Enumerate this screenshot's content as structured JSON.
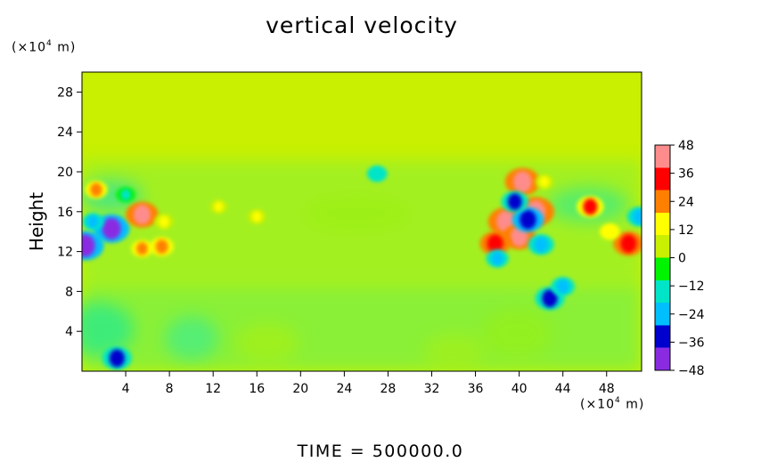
{
  "title": "vertical velocity",
  "footer": "TIME  =  500000.0",
  "chart_data": {
    "type": "heatmap",
    "title": "vertical velocity",
    "ylabel": "Height",
    "y_unit_prefix": "(×10",
    "y_unit_exp": "4",
    "y_unit_suffix": " m)",
    "x_unit_prefix": "(×10",
    "x_unit_exp": "4",
    "x_unit_suffix": " m)",
    "xlim": [
      0,
      51.2
    ],
    "ylim": [
      0,
      30
    ],
    "xticks": [
      4,
      8,
      12,
      16,
      20,
      24,
      28,
      32,
      36,
      40,
      44,
      48
    ],
    "yticks": [
      4,
      8,
      12,
      16,
      20,
      24,
      28
    ],
    "colorbar": {
      "range": [
        -48,
        48
      ],
      "ticks": [
        48,
        36,
        24,
        12,
        0,
        -12,
        -24,
        -36,
        -48
      ],
      "colors": [
        "#8a2be2",
        "#0000cd",
        "#00bfff",
        "#00e5c8",
        "#00f400",
        "#c8f000",
        "#ffff00",
        "#ff7f00",
        "#ff0000",
        "#ff8c8c"
      ]
    },
    "background_value": 0,
    "features": [
      {
        "x": 2.7,
        "y": 14.3,
        "value": -46
      },
      {
        "x": 0.3,
        "y": 12.6,
        "value": -48
      },
      {
        "x": 1.0,
        "y": 15.0,
        "value": -20
      },
      {
        "x": 5.5,
        "y": 15.7,
        "value": 40
      },
      {
        "x": 1.3,
        "y": 18.2,
        "value": 22
      },
      {
        "x": 5.5,
        "y": 12.3,
        "value": 20
      },
      {
        "x": 7.3,
        "y": 12.5,
        "value": 24
      },
      {
        "x": 7.5,
        "y": 15.0,
        "value": 16
      },
      {
        "x": 3.2,
        "y": 1.3,
        "value": -34
      },
      {
        "x": 38.8,
        "y": 15.0,
        "value": 46
      },
      {
        "x": 40.3,
        "y": 19.0,
        "value": 44
      },
      {
        "x": 40.0,
        "y": 13.5,
        "value": 40
      },
      {
        "x": 41.5,
        "y": 16.0,
        "value": 48
      },
      {
        "x": 37.8,
        "y": 12.8,
        "value": 36
      },
      {
        "x": 42.3,
        "y": 19.0,
        "value": 14
      },
      {
        "x": 40.8,
        "y": 15.2,
        "value": -38
      },
      {
        "x": 39.6,
        "y": 17.0,
        "value": -30
      },
      {
        "x": 42.0,
        "y": 12.7,
        "value": -28
      },
      {
        "x": 38.0,
        "y": 11.3,
        "value": -22
      },
      {
        "x": 46.5,
        "y": 16.5,
        "value": 30
      },
      {
        "x": 50.0,
        "y": 12.8,
        "value": 36
      },
      {
        "x": 48.3,
        "y": 14.0,
        "value": 18
      },
      {
        "x": 51.0,
        "y": 15.5,
        "value": -26
      },
      {
        "x": 42.8,
        "y": 7.3,
        "value": -34
      },
      {
        "x": 44.0,
        "y": 8.5,
        "value": -24
      },
      {
        "x": 27.0,
        "y": 19.8,
        "value": -18
      },
      {
        "x": 12.5,
        "y": 16.5,
        "value": 12
      },
      {
        "x": 16.0,
        "y": 15.5,
        "value": 14
      },
      {
        "x": 4.0,
        "y": 17.7,
        "value": -16
      }
    ]
  }
}
